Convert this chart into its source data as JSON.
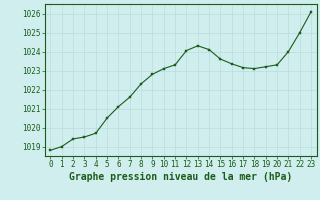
{
  "title": "Graphe pression niveau de la mer (hPa)",
  "bg_color": "#d0eeee",
  "plot_bg_color": "#d0eeee",
  "line_color": "#1a5c1a",
  "marker_color": "#1a5c1a",
  "grid_major_color": "#b8dcdc",
  "grid_minor_color": "#c8e8e8",
  "xlim": [
    -0.5,
    23.5
  ],
  "ylim": [
    1018.5,
    1026.5
  ],
  "yticks": [
    1019,
    1020,
    1021,
    1022,
    1023,
    1024,
    1025,
    1026
  ],
  "xticks": [
    0,
    1,
    2,
    3,
    4,
    5,
    6,
    7,
    8,
    9,
    10,
    11,
    12,
    13,
    14,
    15,
    16,
    17,
    18,
    19,
    20,
    21,
    22,
    23
  ],
  "hours": [
    0,
    1,
    2,
    3,
    4,
    5,
    6,
    7,
    8,
    9,
    10,
    11,
    12,
    13,
    14,
    15,
    16,
    17,
    18,
    19,
    20,
    21,
    22,
    23
  ],
  "pressure": [
    1018.8,
    1019.0,
    1019.4,
    1019.5,
    1019.7,
    1020.5,
    1021.1,
    1021.6,
    1022.3,
    1022.8,
    1023.1,
    1023.3,
    1024.05,
    1024.3,
    1024.1,
    1023.6,
    1023.35,
    1023.15,
    1023.1,
    1023.2,
    1023.3,
    1024.0,
    1025.0,
    1026.1
  ],
  "title_fontsize": 7.0,
  "tick_fontsize": 5.5,
  "label_color": "#1a5c1a",
  "spine_color": "#1a5c1a"
}
